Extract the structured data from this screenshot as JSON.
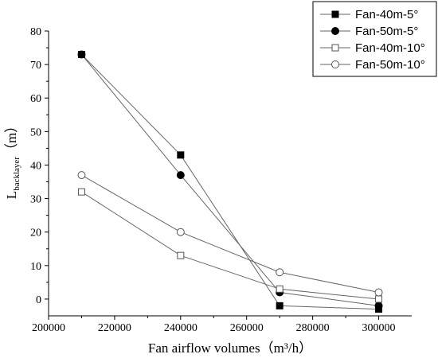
{
  "chart_data": {
    "type": "line",
    "xlabel": "Fan airflow volumes（m³/h）",
    "ylabel_main": "L",
    "ylabel_sub": "backlayer",
    "ylabel_unit": "（m）",
    "xlim": [
      200000,
      310000
    ],
    "ylim": [
      -5,
      80
    ],
    "xticks": [
      "200000",
      "220000",
      "240000",
      "260000",
      "280000",
      "300000"
    ],
    "xtick_values": [
      200000,
      220000,
      240000,
      260000,
      280000,
      300000
    ],
    "yticks": [
      "0",
      "10",
      "20",
      "30",
      "40",
      "50",
      "60",
      "70",
      "80"
    ],
    "ytick_values": [
      0,
      10,
      20,
      30,
      40,
      50,
      60,
      70,
      80
    ],
    "grid": false,
    "legend_position": "top-right",
    "x": [
      210000,
      240000,
      270000,
      300000
    ],
    "series": [
      {
        "name": "Fan-40m-5°",
        "marker": "filled-square",
        "values": [
          73,
          43,
          -2,
          -3
        ]
      },
      {
        "name": "Fan-50m-5°",
        "marker": "filled-circle",
        "values": [
          73,
          37,
          2,
          -2
        ]
      },
      {
        "name": "Fan-40m-10°",
        "marker": "open-square",
        "values": [
          32,
          13,
          3,
          0
        ]
      },
      {
        "name": "Fan-50m-10°",
        "marker": "open-circle",
        "values": [
          37,
          20,
          8,
          2
        ]
      }
    ]
  }
}
